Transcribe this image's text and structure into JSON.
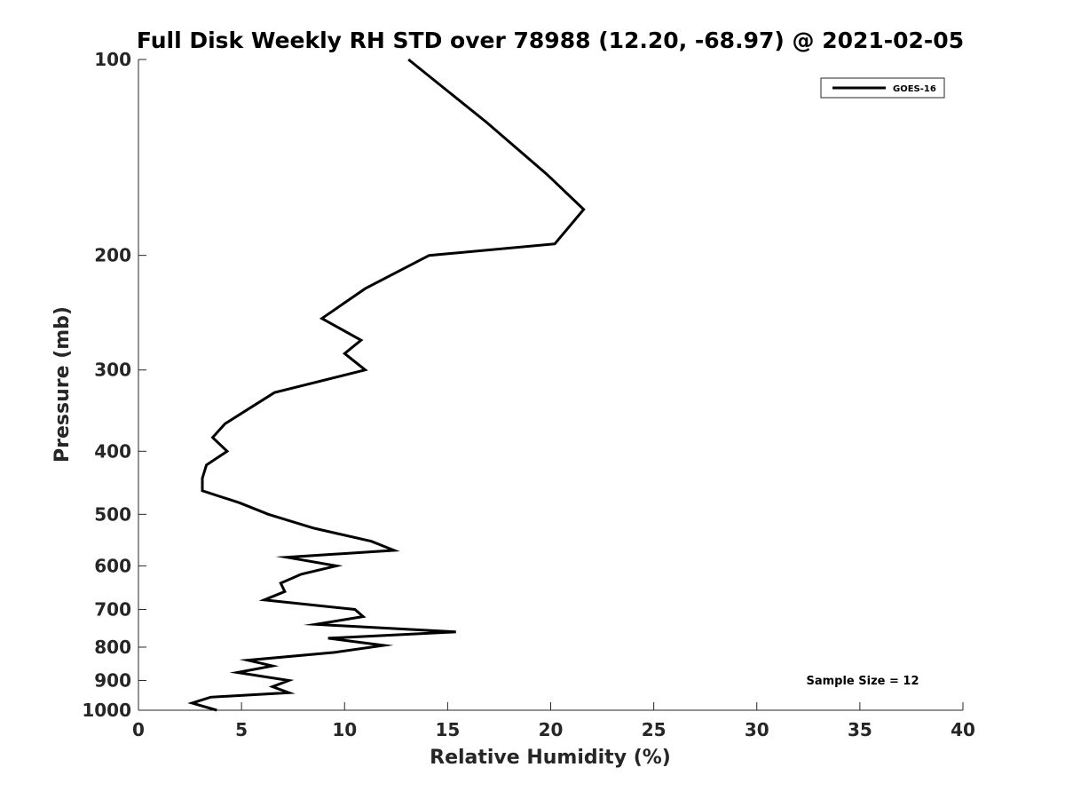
{
  "chart_data": {
    "type": "line",
    "title": "Full Disk Weekly RH STD over 78988 (12.20, -68.97) @ 2021-02-05",
    "xlabel": "Relative Humidity (%)",
    "ylabel": "Pressure (mb)",
    "xlim": [
      0,
      40
    ],
    "ylim": [
      100,
      1000
    ],
    "y_scale": "log",
    "y_reversed": true,
    "x_ticks": [
      0,
      5,
      10,
      15,
      20,
      25,
      30,
      35,
      40
    ],
    "x_tick_labels": [
      "0",
      "5",
      "10",
      "15",
      "20",
      "25",
      "30",
      "35",
      "40"
    ],
    "y_ticks": [
      100,
      200,
      300,
      400,
      500,
      600,
      700,
      800,
      900,
      1000
    ],
    "y_tick_labels": [
      "100",
      "200",
      "300",
      "400",
      "500",
      "600",
      "700",
      "800",
      "900",
      "1000"
    ],
    "grid": false,
    "legend_placement": "top-right",
    "annotation": "Sample Size = 12",
    "series": [
      {
        "name": "GOES-16",
        "color": "#000000",
        "points": [
          [
            13.1,
            100
          ],
          [
            16.9,
            125
          ],
          [
            19.8,
            150
          ],
          [
            21.6,
            170
          ],
          [
            20.2,
            192
          ],
          [
            14.1,
            200
          ],
          [
            11.0,
            225
          ],
          [
            8.9,
            250
          ],
          [
            10.8,
            270
          ],
          [
            10.0,
            283
          ],
          [
            11.0,
            300
          ],
          [
            6.6,
            325
          ],
          [
            5.3,
            345
          ],
          [
            4.2,
            363
          ],
          [
            3.6,
            381
          ],
          [
            4.3,
            400
          ],
          [
            3.3,
            420
          ],
          [
            3.1,
            440
          ],
          [
            3.1,
            460
          ],
          [
            4.9,
            480
          ],
          [
            6.3,
            500
          ],
          [
            8.5,
            525
          ],
          [
            11.3,
            550
          ],
          [
            12.4,
            568
          ],
          [
            7.2,
            582
          ],
          [
            9.6,
            600
          ],
          [
            7.9,
            618
          ],
          [
            6.9,
            638
          ],
          [
            7.1,
            657
          ],
          [
            6.1,
            677
          ],
          [
            10.5,
            700
          ],
          [
            10.9,
            718
          ],
          [
            8.6,
            738
          ],
          [
            15.4,
            758
          ],
          [
            9.2,
            775
          ],
          [
            11.9,
            795
          ],
          [
            9.5,
            815
          ],
          [
            5.3,
            838
          ],
          [
            6.5,
            855
          ],
          [
            4.8,
            875
          ],
          [
            7.3,
            900
          ],
          [
            6.5,
            920
          ],
          [
            7.3,
            940
          ],
          [
            3.5,
            955
          ],
          [
            2.6,
            975
          ],
          [
            3.8,
            1000
          ]
        ]
      }
    ]
  }
}
